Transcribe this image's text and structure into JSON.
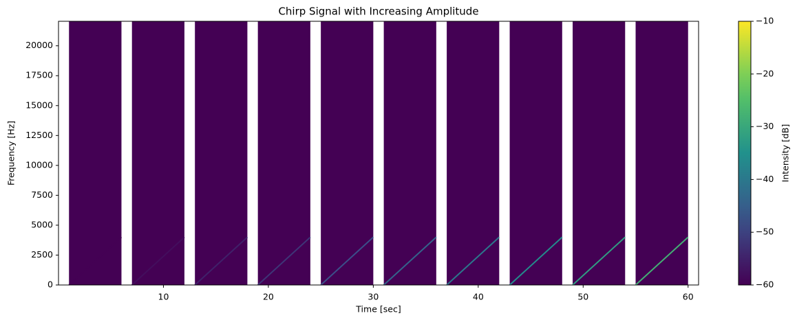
{
  "chart_data": {
    "type": "spectrogram",
    "title": "Chirp Signal with Increasing Amplitude",
    "x_label": "Time [sec]",
    "y_label": "Frequency [Hz]",
    "colorbar_label": "Intensity [dB]",
    "colormap": "viridis",
    "xlim": [
      0,
      61
    ],
    "xticks": [
      10,
      20,
      30,
      40,
      50,
      60
    ],
    "ylim": [
      0,
      22050
    ],
    "yticks": [
      0,
      2500,
      5000,
      7500,
      10000,
      12500,
      15000,
      17500,
      20000
    ],
    "clim": [
      -60,
      -10
    ],
    "cticks": [
      {
        "value": -60,
        "label": "−60"
      },
      {
        "value": -50,
        "label": "−50"
      },
      {
        "value": -40,
        "label": "−40"
      },
      {
        "value": -30,
        "label": "−30"
      },
      {
        "value": -20,
        "label": "−20"
      },
      {
        "value": -10,
        "label": "−10"
      }
    ],
    "background_db": -60,
    "chirp_hz": [
      0,
      4000
    ],
    "segments": [
      {
        "start": 1,
        "end": 6,
        "level": -60
      },
      {
        "start": 7,
        "end": 12,
        "level": -58
      },
      {
        "start": 13,
        "end": 18,
        "level": -55
      },
      {
        "start": 19,
        "end": 24,
        "level": -52
      },
      {
        "start": 25,
        "end": 30,
        "level": -48
      },
      {
        "start": 31,
        "end": 36,
        "level": -44
      },
      {
        "start": 37,
        "end": 42,
        "level": -40
      },
      {
        "start": 43,
        "end": 48,
        "level": -36
      },
      {
        "start": 49,
        "end": 54,
        "level": -32
      },
      {
        "start": 55,
        "end": 60,
        "level": -28
      }
    ]
  }
}
